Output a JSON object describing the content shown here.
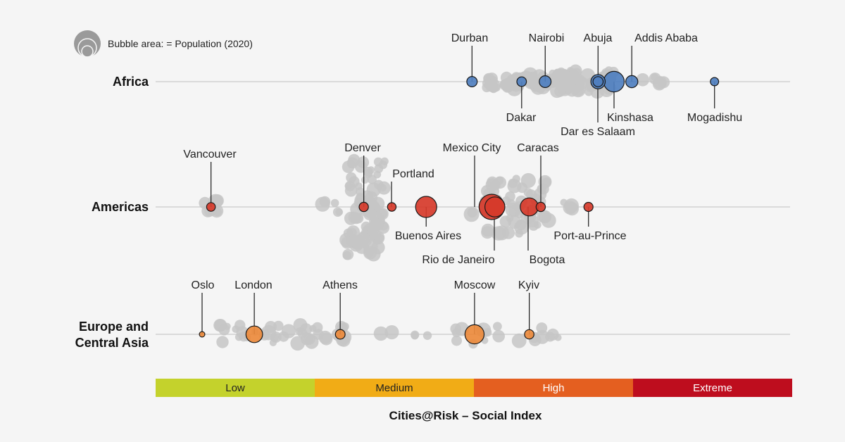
{
  "chart_data": {
    "type": "scatter",
    "chart_subtype": "beeswarm bubble",
    "xlabel": "Cities@Risk – Social Index",
    "size_legend": "Bubble area: = Population (2020)",
    "risk_bands": [
      {
        "label": "Low",
        "color": "#c4d22c"
      },
      {
        "label": "Medium",
        "color": "#f1ac16"
      },
      {
        "label": "High",
        "color": "#e45f20"
      },
      {
        "label": "Extreme",
        "color": "#be0d1e"
      }
    ],
    "background_city_color": "#c6c6c6",
    "regions": [
      {
        "name": "Africa",
        "color": "#4f7fbf",
        "cities": [
          {
            "name": "Durban",
            "index": 0.497,
            "pop": 3.7
          },
          {
            "name": "Dakar",
            "index": 0.575,
            "pop": 3.1
          },
          {
            "name": "Nairobi",
            "index": 0.612,
            "pop": 4.7
          },
          {
            "name": "Abuja",
            "index": 0.695,
            "pop": 3.5
          },
          {
            "name": "Dar es Salaam",
            "index": 0.695,
            "pop": 7.0
          },
          {
            "name": "Kinshasa",
            "index": 0.72,
            "pop": 14.3
          },
          {
            "name": "Addis Ababa",
            "index": 0.748,
            "pop": 5.0
          },
          {
            "name": "Mogadishu",
            "index": 0.878,
            "pop": 2.3
          }
        ]
      },
      {
        "name": "Americas",
        "color": "#d63a2a",
        "cities": [
          {
            "name": "Vancouver",
            "index": 0.087,
            "pop": 2.6
          },
          {
            "name": "Denver",
            "index": 0.327,
            "pop": 2.9
          },
          {
            "name": "Portland",
            "index": 0.371,
            "pop": 2.5
          },
          {
            "name": "Buenos Aires",
            "index": 0.425,
            "pop": 15.2
          },
          {
            "name": "Mexico City",
            "index": 0.528,
            "pop": 21.8
          },
          {
            "name": "Rio de Janeiro",
            "index": 0.533,
            "pop": 13.5
          },
          {
            "name": "Bogota",
            "index": 0.587,
            "pop": 11.0
          },
          {
            "name": "Caracas",
            "index": 0.605,
            "pop": 2.9
          },
          {
            "name": "Port-au-Prince",
            "index": 0.68,
            "pop": 2.8
          }
        ]
      },
      {
        "name": "Europe and Central Asia",
        "color": "#ec8a3c",
        "cities": [
          {
            "name": "Oslo",
            "index": 0.073,
            "pop": 1.0
          },
          {
            "name": "London",
            "index": 0.155,
            "pop": 9.3
          },
          {
            "name": "Athens",
            "index": 0.29,
            "pop": 3.2
          },
          {
            "name": "Moscow",
            "index": 0.501,
            "pop": 12.5
          },
          {
            "name": "Kyiv",
            "index": 0.587,
            "pop": 3.0
          }
        ]
      }
    ]
  }
}
